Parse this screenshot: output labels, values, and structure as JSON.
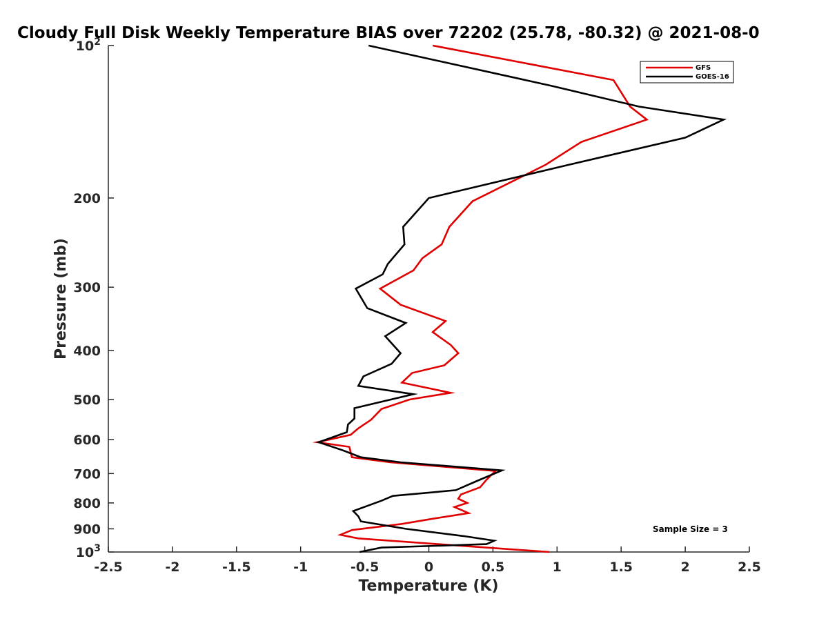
{
  "chart_data": {
    "type": "line",
    "title": "Cloudy Full Disk Weekly Temperature BIAS over 72202 (25.78, -80.32) @ 2021-08-0",
    "xlabel": "Temperature (K)",
    "ylabel": "Pressure (mb)",
    "xlim": [
      -2.5,
      2.5
    ],
    "ylim": [
      1000,
      100
    ],
    "y_scale": "log",
    "y_reversed": true,
    "x_ticks": [
      {
        "value": -2.5,
        "label": "-2.5"
      },
      {
        "value": -2,
        "label": "-2"
      },
      {
        "value": -1.5,
        "label": "-1.5"
      },
      {
        "value": -1,
        "label": "-1"
      },
      {
        "value": -0.5,
        "label": "-0.5"
      },
      {
        "value": 0,
        "label": "0"
      },
      {
        "value": 0.5,
        "label": "0.5"
      },
      {
        "value": 1,
        "label": "1"
      },
      {
        "value": 1.5,
        "label": "1.5"
      },
      {
        "value": 2,
        "label": "2"
      },
      {
        "value": 2.5,
        "label": "2.5"
      }
    ],
    "y_ticks": [
      {
        "value": 200,
        "label": "200"
      },
      {
        "value": 300,
        "label": "300"
      },
      {
        "value": 400,
        "label": "400"
      },
      {
        "value": 500,
        "label": "500"
      },
      {
        "value": 600,
        "label": "600"
      },
      {
        "value": 700,
        "label": "700"
      },
      {
        "value": 800,
        "label": "800"
      },
      {
        "value": 900,
        "label": "900"
      }
    ],
    "y_decade_ticks": [
      {
        "value": 100,
        "base": "10",
        "exp": "2"
      },
      {
        "value": 1000,
        "base": "10",
        "exp": "3"
      }
    ],
    "legend_position": "top-right",
    "grid": false,
    "annotation": "Sample Size = 3",
    "series": [
      {
        "name": "GFS",
        "color": "#e00000",
        "points": [
          [
            0.03,
            100
          ],
          [
            1.44,
            117
          ],
          [
            1.57,
            132
          ],
          [
            1.7,
            140
          ],
          [
            1.19,
            155
          ],
          [
            0.91,
            172
          ],
          [
            0.34,
            203
          ],
          [
            0.16,
            228
          ],
          [
            0.1,
            247
          ],
          [
            -0.05,
            263
          ],
          [
            -0.12,
            278
          ],
          [
            -0.38,
            302
          ],
          [
            -0.22,
            325
          ],
          [
            0.13,
            350
          ],
          [
            0.03,
            368
          ],
          [
            0.17,
            390
          ],
          [
            0.23,
            405
          ],
          [
            0.12,
            428
          ],
          [
            -0.13,
            443
          ],
          [
            -0.21,
            463
          ],
          [
            0.17,
            485
          ],
          [
            -0.15,
            500
          ],
          [
            -0.37,
            522
          ],
          [
            -0.45,
            548
          ],
          [
            -0.55,
            570
          ],
          [
            -0.61,
            587
          ],
          [
            -0.87,
            607
          ],
          [
            -0.62,
            620
          ],
          [
            -0.6,
            650
          ],
          [
            -0.3,
            665
          ],
          [
            0.52,
            692
          ],
          [
            0.45,
            720
          ],
          [
            0.4,
            745
          ],
          [
            0.25,
            770
          ],
          [
            0.23,
            785
          ],
          [
            0.3,
            800
          ],
          [
            0.2,
            815
          ],
          [
            0.31,
            838
          ],
          [
            0.05,
            858
          ],
          [
            -0.21,
            880
          ],
          [
            -0.6,
            905
          ],
          [
            -0.69,
            925
          ],
          [
            -0.55,
            940
          ],
          [
            0.2,
            970
          ],
          [
            0.94,
            1000
          ]
        ]
      },
      {
        "name": "GOES-16",
        "color": "#000000",
        "points": [
          [
            -0.47,
            100
          ],
          [
            0.95,
            120
          ],
          [
            1.64,
            132
          ],
          [
            2.3,
            140
          ],
          [
            2.0,
            152
          ],
          [
            1.09,
            172
          ],
          [
            0.0,
            200
          ],
          [
            -0.2,
            228
          ],
          [
            -0.19,
            247
          ],
          [
            -0.32,
            270
          ],
          [
            -0.36,
            283
          ],
          [
            -0.57,
            302
          ],
          [
            -0.48,
            330
          ],
          [
            -0.18,
            353
          ],
          [
            -0.34,
            375
          ],
          [
            -0.22,
            405
          ],
          [
            -0.29,
            425
          ],
          [
            -0.51,
            450
          ],
          [
            -0.55,
            470
          ],
          [
            -0.12,
            488
          ],
          [
            -0.58,
            520
          ],
          [
            -0.58,
            545
          ],
          [
            -0.63,
            560
          ],
          [
            -0.64,
            580
          ],
          [
            -0.86,
            607
          ],
          [
            -0.67,
            630
          ],
          [
            -0.53,
            650
          ],
          [
            -0.22,
            665
          ],
          [
            0.57,
            690
          ],
          [
            0.37,
            725
          ],
          [
            0.21,
            755
          ],
          [
            -0.28,
            775
          ],
          [
            -0.37,
            792
          ],
          [
            -0.59,
            830
          ],
          [
            -0.55,
            850
          ],
          [
            -0.53,
            870
          ],
          [
            -0.18,
            900
          ],
          [
            0.27,
            930
          ],
          [
            0.51,
            950
          ],
          [
            0.45,
            965
          ],
          [
            -0.37,
            980
          ],
          [
            -0.54,
            1000
          ]
        ]
      }
    ]
  }
}
